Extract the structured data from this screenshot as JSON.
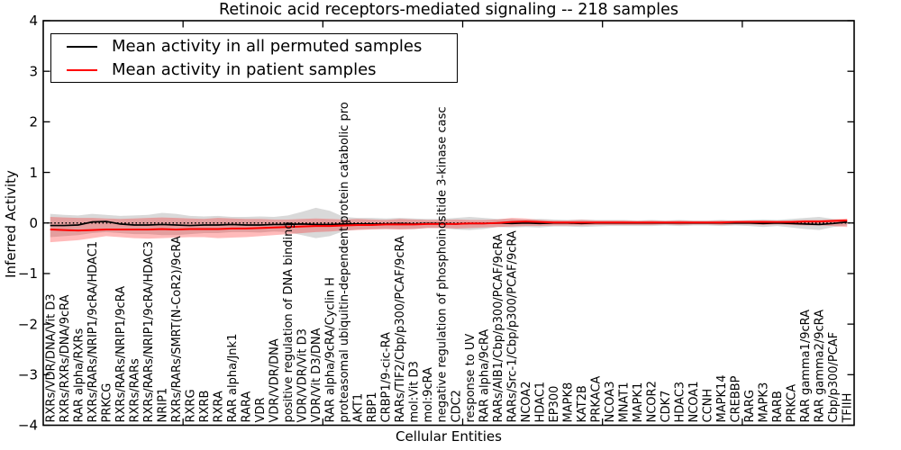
{
  "chart_data": {
    "type": "line",
    "title": "Retinoic acid receptors-mediated signaling -- 218 samples",
    "xlabel": "Cellular Entities",
    "ylabel": "Inferred Activity",
    "ylim": [
      -4,
      4
    ],
    "yticks": [
      -4,
      -3,
      -2,
      -1,
      0,
      1,
      2,
      3,
      4
    ],
    "xtick_positions": [
      10,
      20,
      30,
      40,
      50
    ],
    "grid": false,
    "legend_position": "upper left",
    "reference_line": {
      "y": 0,
      "style": "dotted",
      "color": "#000000"
    },
    "categories": [
      "RXRs/VDR/DNA/Vit D3",
      "RXRs/RXRs/DNA/9cRA",
      "RAR alpha/RXRs",
      "RXRs/RARs/NRIP1/9cRA/HDAC1",
      "PRKCG",
      "RXRs/RARs/NRIP1/9cRA",
      "RXRs/RARs",
      "RXRs/RARs/NRIP1/9cRA/HDAC3",
      "NRIP1",
      "RXRs/RARs/SMRT(N-CoR2)/9cRA",
      "RXRG",
      "RXRB",
      "RXRA",
      "RAR alpha/Jnk1",
      "RARA",
      "VDR",
      "VDR/VDR/DNA",
      "positive regulation of DNA binding",
      "VDR/VDR/Vit D3",
      "VDR/Vit D3/DNA",
      "RAR alpha/9cRA/Cyclin H",
      "proteasomal ubiquitin-dependent protein catabolic pro",
      "AKT1",
      "RBP1",
      "CRBP1/9-cic-RA",
      "RARs/TIF2/Cbp/p300/PCAF/9cRA",
      "mol:Vit D3",
      "mol:9cRA",
      "negative regulation of phosphoinositide 3-kinase casc",
      "CDC2",
      "response to UV",
      "RAR alpha/9cRA",
      "RARs/AIB1/Cbp/p300/PCAF/9cRA",
      "RARs/Src-1/Cbp/p300/PCAF/9cRA",
      "NCOA2",
      "HDAC1",
      "EP300",
      "MAPK8",
      "KAT2B",
      "PRKACA",
      "NCOA3",
      "MNAT1",
      "MAPK1",
      "NCOR2",
      "CDK7",
      "HDAC3",
      "NCOA1",
      "CCNH",
      "MAPK14",
      "CREBBP",
      "RARG",
      "MAPK3",
      "RARB",
      "PRKCA",
      "RAR gamma1/9cRA",
      "RAR gamma2/9cRA",
      "Cbp/p300/PCAF",
      "TFIIH"
    ],
    "series": [
      {
        "name": "Mean activity in all permuted samples",
        "color": "#000000",
        "band_color": "#000000",
        "band_alpha": 0.15,
        "values": [
          -0.05,
          -0.05,
          -0.04,
          0.02,
          0.03,
          -0.02,
          -0.04,
          -0.04,
          -0.03,
          -0.04,
          -0.05,
          -0.04,
          -0.04,
          -0.03,
          -0.04,
          -0.04,
          -0.03,
          -0.03,
          -0.02,
          -0.03,
          -0.03,
          -0.02,
          -0.02,
          -0.02,
          -0.02,
          -0.01,
          -0.02,
          -0.01,
          -0.01,
          -0.02,
          -0.01,
          -0.01,
          0.0,
          -0.01,
          0.0,
          -0.01,
          0.0,
          0.0,
          -0.01,
          0.0,
          0.0,
          0.0,
          0.0,
          0.0,
          0.0,
          0.0,
          0.0,
          0.0,
          0.0,
          0.0,
          0.0,
          -0.01,
          0.0,
          -0.01,
          -0.02,
          -0.03,
          -0.01,
          0.02
        ],
        "band_upper": [
          0.18,
          0.16,
          0.15,
          0.18,
          0.16,
          0.14,
          0.15,
          0.16,
          0.2,
          0.18,
          0.14,
          0.13,
          0.14,
          0.12,
          0.12,
          0.13,
          0.12,
          0.15,
          0.22,
          0.3,
          0.24,
          0.12,
          0.1,
          0.1,
          0.09,
          0.1,
          0.09,
          0.08,
          0.08,
          0.1,
          0.12,
          0.1,
          0.08,
          0.08,
          0.07,
          0.08,
          0.07,
          0.06,
          0.07,
          0.06,
          0.06,
          0.06,
          0.05,
          0.06,
          0.05,
          0.06,
          0.05,
          0.05,
          0.06,
          0.05,
          0.06,
          0.07,
          0.06,
          0.08,
          0.1,
          0.12,
          0.08,
          0.06
        ],
        "band_lower": [
          -0.28,
          -0.26,
          -0.24,
          -0.2,
          -0.18,
          -0.2,
          -0.22,
          -0.22,
          -0.24,
          -0.24,
          -0.22,
          -0.2,
          -0.2,
          -0.18,
          -0.18,
          -0.19,
          -0.17,
          -0.18,
          -0.24,
          -0.3,
          -0.26,
          -0.16,
          -0.13,
          -0.12,
          -0.12,
          -0.12,
          -0.12,
          -0.1,
          -0.1,
          -0.13,
          -0.14,
          -0.12,
          -0.08,
          -0.09,
          -0.08,
          -0.09,
          -0.07,
          -0.07,
          -0.08,
          -0.07,
          -0.06,
          -0.06,
          -0.06,
          -0.06,
          -0.05,
          -0.06,
          -0.05,
          -0.05,
          -0.06,
          -0.05,
          -0.06,
          -0.08,
          -0.06,
          -0.09,
          -0.12,
          -0.14,
          -0.08,
          -0.05
        ]
      },
      {
        "name": "Mean activity in patient samples",
        "color": "#ff0000",
        "band_color": "#ff0000",
        "band_alpha": 0.27,
        "values": [
          -0.13,
          -0.14,
          -0.15,
          -0.14,
          -0.13,
          -0.13,
          -0.13,
          -0.13,
          -0.12,
          -0.13,
          -0.12,
          -0.12,
          -0.12,
          -0.11,
          -0.11,
          -0.1,
          -0.09,
          -0.08,
          -0.07,
          -0.06,
          -0.06,
          -0.05,
          -0.04,
          -0.04,
          -0.03,
          -0.03,
          -0.03,
          -0.02,
          -0.02,
          -0.02,
          -0.01,
          -0.01,
          0.0,
          0.02,
          0.03,
          0.02,
          0.01,
          0.01,
          0.01,
          0.01,
          0.01,
          0.01,
          0.01,
          0.01,
          0.01,
          0.01,
          0.01,
          0.01,
          0.01,
          0.02,
          0.02,
          0.02,
          0.02,
          0.02,
          0.03,
          0.03,
          0.04,
          0.05
        ],
        "band_upper": [
          0.12,
          0.11,
          0.1,
          0.1,
          0.09,
          0.08,
          0.09,
          0.1,
          0.11,
          0.1,
          0.09,
          0.08,
          0.1,
          0.09,
          0.08,
          0.08,
          0.07,
          0.07,
          0.08,
          0.09,
          0.08,
          0.07,
          0.08,
          0.07,
          0.06,
          0.08,
          0.07,
          0.06,
          0.06,
          0.07,
          0.06,
          0.06,
          0.07,
          0.1,
          0.09,
          0.06,
          0.05,
          0.05,
          0.06,
          0.05,
          0.05,
          0.05,
          0.04,
          0.05,
          0.04,
          0.05,
          0.04,
          0.04,
          0.05,
          0.04,
          0.05,
          0.05,
          0.04,
          0.05,
          0.06,
          0.06,
          0.07,
          0.09
        ],
        "band_lower": [
          -0.38,
          -0.36,
          -0.34,
          -0.3,
          -0.26,
          -0.28,
          -0.3,
          -0.31,
          -0.3,
          -0.29,
          -0.28,
          -0.28,
          -0.3,
          -0.29,
          -0.28,
          -0.26,
          -0.24,
          -0.22,
          -0.2,
          -0.18,
          -0.17,
          -0.15,
          -0.14,
          -0.13,
          -0.12,
          -0.13,
          -0.12,
          -0.1,
          -0.1,
          -0.11,
          -0.1,
          -0.09,
          -0.08,
          -0.07,
          -0.06,
          -0.06,
          -0.05,
          -0.05,
          -0.05,
          -0.04,
          -0.04,
          -0.04,
          -0.04,
          -0.04,
          -0.03,
          -0.04,
          -0.03,
          -0.03,
          -0.04,
          -0.03,
          -0.03,
          -0.04,
          -0.03,
          -0.04,
          -0.05,
          -0.05,
          -0.06,
          -0.08
        ]
      }
    ]
  }
}
